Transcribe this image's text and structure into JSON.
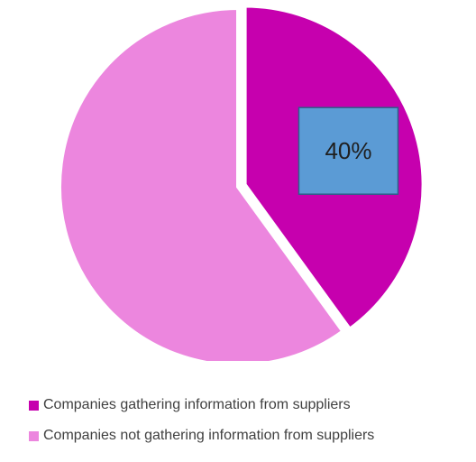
{
  "chart_data": {
    "type": "pie",
    "title": "",
    "slices": [
      {
        "label": "Companies gathering information from suppliers",
        "value": 40,
        "color": "#C600AE",
        "exploded": true,
        "data_label": "40%"
      },
      {
        "label": "Companies not gathering information from suppliers",
        "value": 60,
        "color": "#EC86DE",
        "exploded": false,
        "data_label": ""
      }
    ],
    "legend": {
      "position": "bottom"
    },
    "data_label_box_color": "#5B9BD5"
  }
}
